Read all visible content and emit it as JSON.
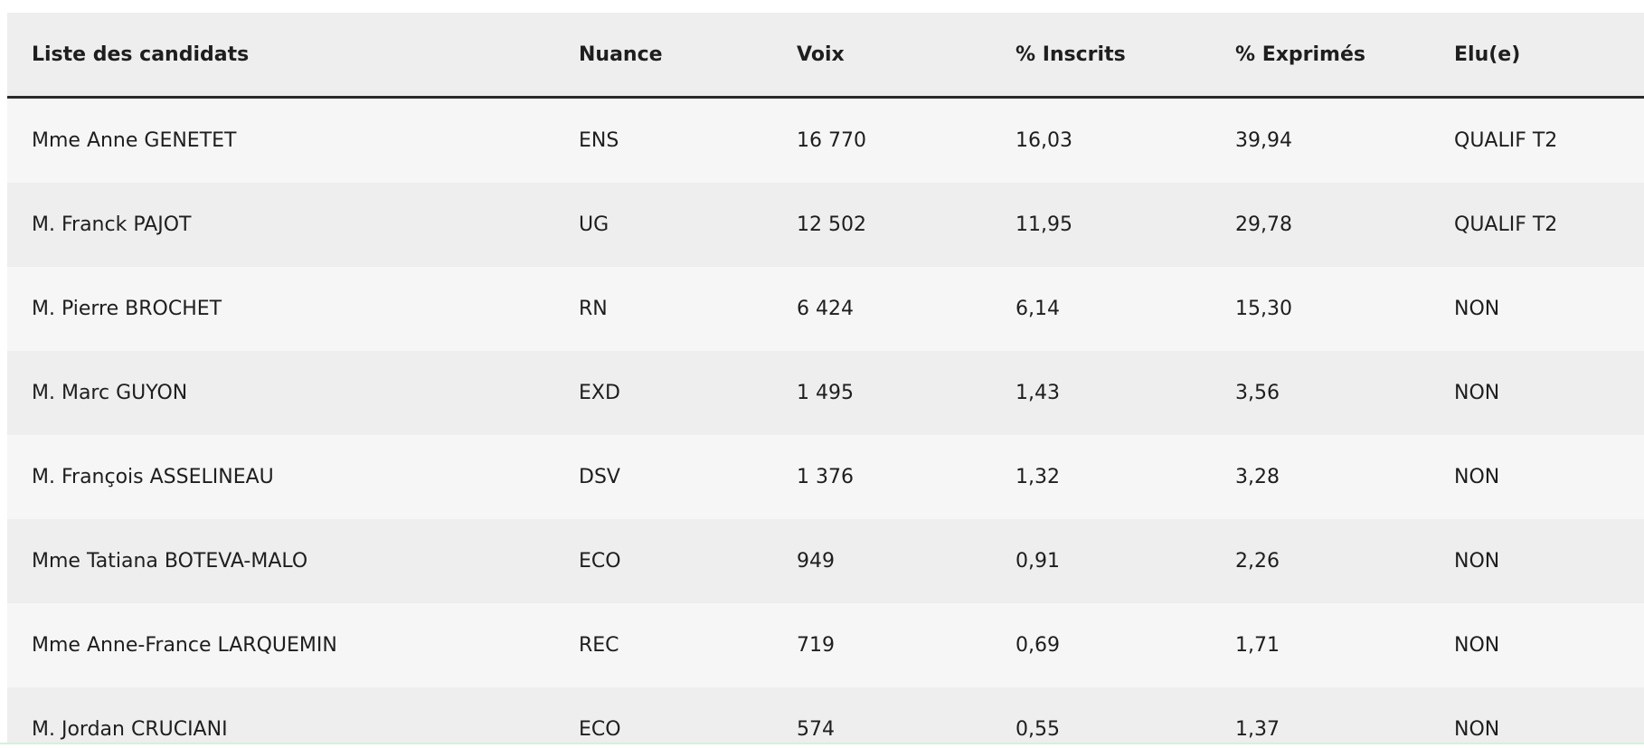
{
  "table": {
    "headers": [
      "Liste des candidats",
      "Nuance",
      "Voix",
      "% Inscrits",
      "% Exprimés",
      "Elu(e)"
    ],
    "rows": [
      [
        "Mme Anne GENETET",
        "ENS",
        "16 770",
        "16,03",
        "39,94",
        "QUALIF T2"
      ],
      [
        "M. Franck PAJOT",
        "UG",
        "12 502",
        "11,95",
        "29,78",
        "QUALIF T2"
      ],
      [
        "M. Pierre BROCHET",
        "RN",
        "6 424",
        "6,14",
        "15,30",
        "NON"
      ],
      [
        "M. Marc GUYON",
        "EXD",
        "1 495",
        "1,43",
        "3,56",
        "NON"
      ],
      [
        "M. François ASSELINEAU",
        "DSV",
        "1 376",
        "1,32",
        "3,28",
        "NON"
      ],
      [
        "Mme Tatiana BOTEVA-MALO",
        "ECO",
        "949",
        "0,91",
        "2,26",
        "NON"
      ],
      [
        "Mme Anne-France LARQUEMIN",
        "REC",
        "719",
        "0,69",
        "1,71",
        "NON"
      ],
      [
        "M. Jordan CRUCIANI",
        "ECO",
        "574",
        "0,55",
        "1,37",
        "NON"
      ]
    ]
  }
}
